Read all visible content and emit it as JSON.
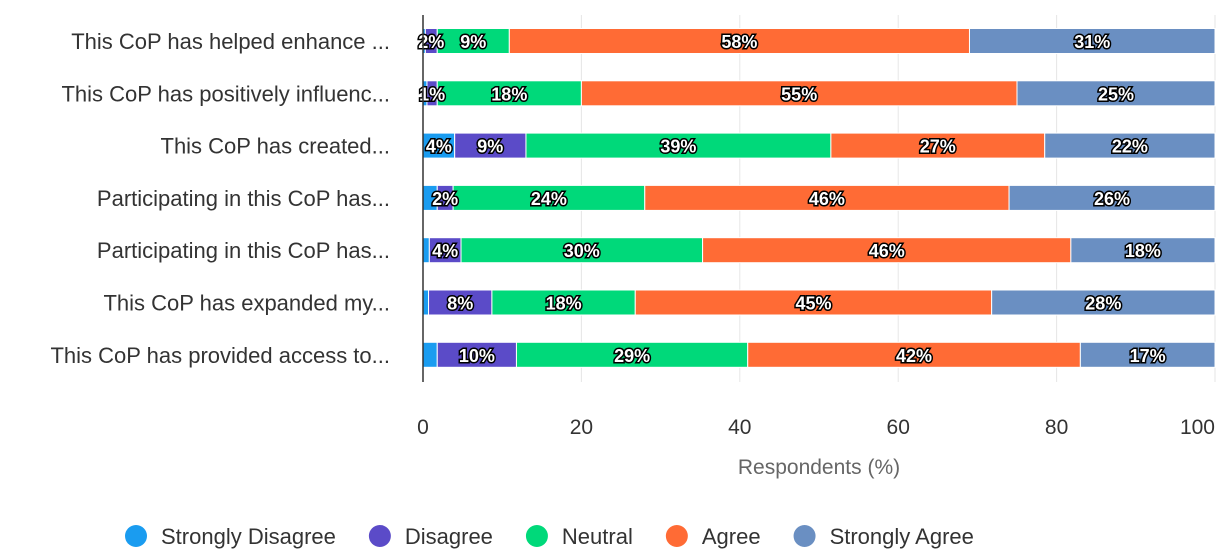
{
  "chart_data": {
    "type": "bar",
    "orientation": "horizontal",
    "stacked": true,
    "categories": [
      "This CoP has helped enhance ...",
      "This CoP has positively influenc...",
      "This CoP has created...",
      "Participating in this CoP has...",
      "Participating in this CoP has...",
      "This CoP has expanded my...",
      "This CoP has provided access to..."
    ],
    "series": [
      {
        "name": "Strongly Disagree",
        "color": "#1a9cf0",
        "values": [
          0.3,
          0.5,
          4,
          1.8,
          0.8,
          0.7,
          1.8
        ],
        "labels": [
          "",
          "",
          "4%",
          "",
          "",
          "",
          ""
        ]
      },
      {
        "name": "Disagree",
        "color": "#5b4bc8",
        "values": [
          1.5,
          1.3,
          9,
          2,
          4,
          8,
          10
        ],
        "labels": [
          "2%",
          "1%",
          "9%",
          "2%",
          "4%",
          "8%",
          "10%"
        ]
      },
      {
        "name": "Neutral",
        "color": "#00d97a",
        "values": [
          9.1,
          18.2,
          38.5,
          24.2,
          30.5,
          18.1,
          29.2
        ],
        "labels": [
          "9%",
          "18%",
          "39%",
          "24%",
          "30%",
          "18%",
          "29%"
        ]
      },
      {
        "name": "Agree",
        "color": "#ff6b35",
        "values": [
          58.1,
          55,
          27,
          46,
          46.5,
          45,
          42
        ],
        "labels": [
          "58%",
          "55%",
          "27%",
          "46%",
          "46%",
          "45%",
          "42%"
        ]
      },
      {
        "name": "Strongly Agree",
        "color": "#6a8fc2",
        "values": [
          31,
          25,
          21.5,
          26,
          18.2,
          28.2,
          17
        ],
        "labels": [
          "31%",
          "25%",
          "22%",
          "26%",
          "18%",
          "28%",
          "17%"
        ]
      }
    ],
    "xlabel": "Respondents (%)",
    "ylabel": "",
    "xlim": [
      0,
      100
    ],
    "xticks": [
      0,
      20,
      40,
      60,
      80,
      100
    ],
    "grid": true,
    "legend_position": "bottom"
  }
}
